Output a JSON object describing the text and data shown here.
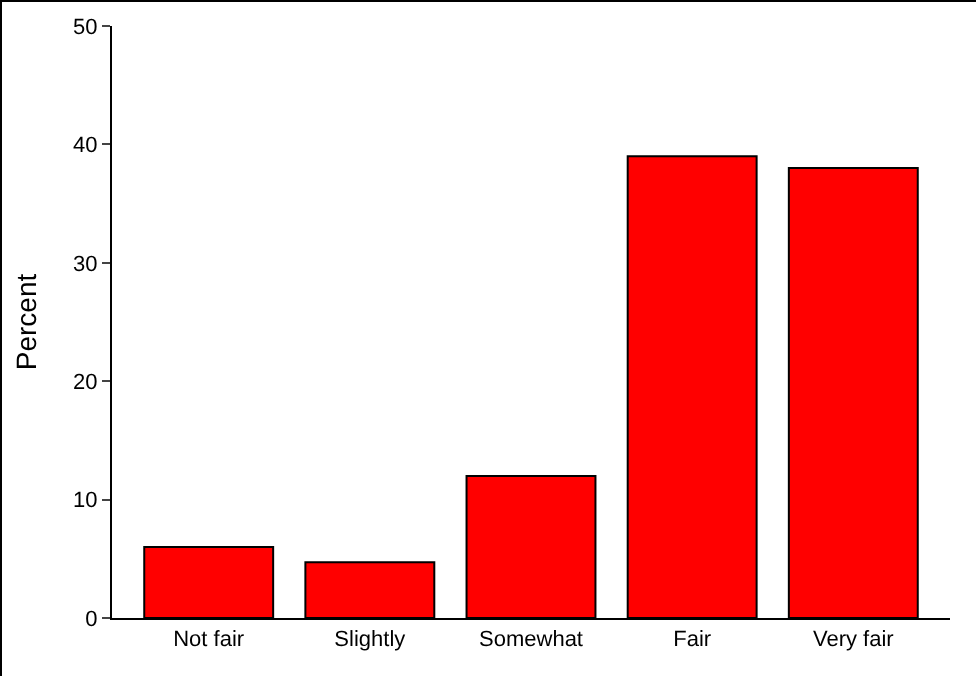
{
  "chart_data": {
    "type": "bar",
    "ylabel": "Percent",
    "categories": [
      "Not fair",
      "Slightly",
      "Somewhat",
      "Fair",
      "Very fair"
    ],
    "values": [
      6,
      4.7,
      12,
      39,
      38
    ],
    "color": "#ff0000",
    "ylim": [
      0,
      50
    ],
    "yticks": [
      0,
      10,
      20,
      30,
      40,
      50
    ],
    "grid": false
  }
}
